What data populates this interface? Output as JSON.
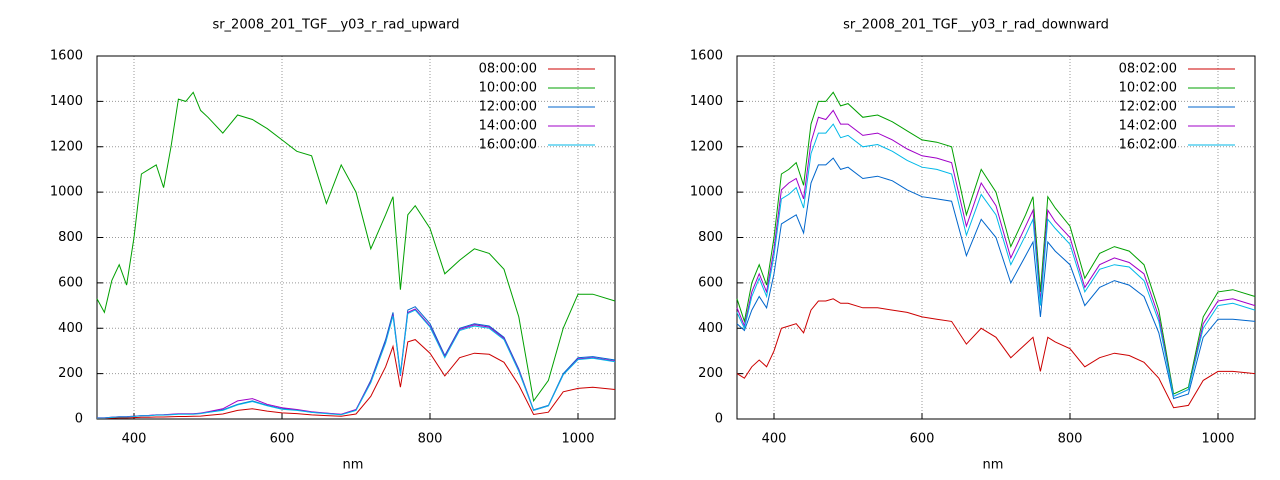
{
  "chart_data": [
    {
      "type": "line",
      "title": "sr_2008_201_TGF__y03_r_rad_upward",
      "x_label": "nm",
      "x": [
        350,
        360,
        370,
        380,
        390,
        400,
        410,
        420,
        430,
        440,
        450,
        460,
        470,
        480,
        490,
        500,
        520,
        540,
        560,
        580,
        600,
        620,
        640,
        660,
        680,
        700,
        720,
        740,
        750,
        760,
        770,
        780,
        800,
        820,
        840,
        860,
        880,
        900,
        920,
        940,
        960,
        980,
        1000,
        1020,
        1050
      ],
      "series": [
        {
          "name": "08:00:00",
          "color": "#cc0000",
          "values": [
            2,
            2,
            4,
            5,
            5,
            6,
            8,
            8,
            9,
            9,
            10,
            11,
            11,
            12,
            13,
            16,
            22,
            38,
            45,
            35,
            27,
            24,
            18,
            15,
            12,
            22,
            100,
            230,
            320,
            140,
            340,
            350,
            290,
            190,
            270,
            290,
            285,
            250,
            150,
            20,
            30,
            120,
            135,
            140,
            130
          ]
        },
        {
          "name": "10:00:00",
          "color": "#00a000",
          "values": [
            530,
            470,
            610,
            680,
            590,
            800,
            1080,
            1100,
            1120,
            1020,
            1200,
            1410,
            1400,
            1440,
            1360,
            1330,
            1260,
            1340,
            1320,
            1280,
            1230,
            1180,
            1160,
            950,
            1120,
            1000,
            750,
            900,
            980,
            570,
            900,
            940,
            840,
            640,
            700,
            750,
            730,
            660,
            450,
            80,
            170,
            400,
            550,
            550,
            520
          ]
        },
        {
          "name": "12:00:00",
          "color": "#0066cc",
          "values": [
            5,
            5,
            8,
            10,
            10,
            12,
            15,
            15,
            18,
            18,
            20,
            22,
            22,
            22,
            25,
            30,
            40,
            65,
            80,
            60,
            45,
            40,
            30,
            25,
            20,
            40,
            170,
            350,
            470,
            200,
            480,
            495,
            420,
            280,
            400,
            420,
            410,
            360,
            220,
            40,
            60,
            200,
            270,
            275,
            260
          ]
        },
        {
          "name": "14:00:00",
          "color": "#a000c8",
          "values": [
            5,
            5,
            8,
            10,
            10,
            12,
            15,
            16,
            18,
            19,
            21,
            23,
            23,
            23,
            26,
            32,
            45,
            80,
            90,
            65,
            50,
            42,
            32,
            26,
            21,
            42,
            165,
            340,
            460,
            190,
            470,
            485,
            410,
            275,
            395,
            415,
            405,
            355,
            215,
            38,
            58,
            195,
            265,
            270,
            255
          ]
        },
        {
          "name": "16:00:00",
          "color": "#00b8e8",
          "values": [
            4,
            4,
            7,
            9,
            9,
            11,
            14,
            14,
            17,
            17,
            19,
            21,
            21,
            21,
            24,
            29,
            38,
            62,
            77,
            58,
            43,
            38,
            29,
            24,
            19,
            38,
            160,
            335,
            455,
            195,
            465,
            480,
            405,
            270,
            390,
            410,
            400,
            350,
            210,
            38,
            58,
            195,
            262,
            268,
            252
          ]
        }
      ],
      "xlim": [
        350,
        1050
      ],
      "ylim": [
        0,
        1600
      ],
      "xticks": [
        400,
        600,
        800,
        1000
      ],
      "yticks": [
        0,
        200,
        400,
        600,
        800,
        1000,
        1200,
        1400,
        1600
      ],
      "grid": true,
      "legend": "top-right"
    },
    {
      "type": "line",
      "title": "sr_2008_201_TGF__y03_r_rad_downward",
      "x_label": "nm",
      "x": [
        350,
        360,
        370,
        380,
        390,
        400,
        410,
        420,
        430,
        440,
        450,
        460,
        470,
        480,
        490,
        500,
        520,
        540,
        560,
        580,
        600,
        620,
        640,
        660,
        680,
        700,
        720,
        740,
        750,
        760,
        770,
        780,
        800,
        820,
        840,
        860,
        880,
        900,
        920,
        940,
        960,
        980,
        1000,
        1020,
        1050
      ],
      "series": [
        {
          "name": "08:02:00",
          "color": "#cc0000",
          "values": [
            200,
            180,
            230,
            260,
            230,
            300,
            400,
            410,
            420,
            380,
            480,
            520,
            520,
            530,
            510,
            510,
            490,
            490,
            480,
            470,
            450,
            440,
            430,
            330,
            400,
            360,
            270,
            330,
            360,
            210,
            360,
            340,
            310,
            230,
            270,
            290,
            280,
            250,
            180,
            50,
            60,
            170,
            210,
            210,
            200
          ]
        },
        {
          "name": "10:02:00",
          "color": "#00a000",
          "values": [
            530,
            430,
            600,
            680,
            590,
            800,
            1080,
            1100,
            1130,
            1030,
            1300,
            1400,
            1400,
            1440,
            1380,
            1390,
            1330,
            1340,
            1310,
            1270,
            1230,
            1220,
            1200,
            900,
            1100,
            1000,
            760,
            900,
            980,
            560,
            980,
            930,
            850,
            620,
            730,
            760,
            740,
            680,
            480,
            110,
            140,
            450,
            560,
            570,
            540
          ]
        },
        {
          "name": "12:02:00",
          "color": "#0066cc",
          "values": [
            420,
            390,
            480,
            540,
            490,
            640,
            860,
            880,
            900,
            820,
            1040,
            1120,
            1120,
            1150,
            1100,
            1110,
            1060,
            1070,
            1050,
            1010,
            980,
            970,
            960,
            720,
            880,
            800,
            600,
            720,
            780,
            450,
            780,
            740,
            680,
            500,
            580,
            610,
            590,
            540,
            380,
            90,
            110,
            360,
            440,
            440,
            430
          ]
        },
        {
          "name": "14:02:00",
          "color": "#a000c8",
          "values": [
            490,
            410,
            560,
            640,
            560,
            750,
            1010,
            1040,
            1060,
            970,
            1220,
            1330,
            1320,
            1360,
            1300,
            1300,
            1250,
            1260,
            1230,
            1190,
            1160,
            1150,
            1130,
            850,
            1040,
            940,
            710,
            850,
            920,
            520,
            920,
            870,
            800,
            580,
            680,
            710,
            690,
            640,
            450,
            100,
            130,
            420,
            520,
            530,
            500
          ]
        },
        {
          "name": "16:02:00",
          "color": "#00b8e8",
          "values": [
            470,
            400,
            540,
            620,
            540,
            720,
            970,
            990,
            1020,
            930,
            1170,
            1260,
            1260,
            1300,
            1240,
            1250,
            1200,
            1210,
            1180,
            1140,
            1110,
            1100,
            1080,
            810,
            990,
            900,
            680,
            810,
            880,
            500,
            880,
            840,
            770,
            560,
            660,
            680,
            670,
            610,
            430,
            100,
            130,
            400,
            500,
            510,
            480
          ]
        }
      ],
      "xlim": [
        350,
        1050
      ],
      "ylim": [
        0,
        1600
      ],
      "xticks": [
        400,
        600,
        800,
        1000
      ],
      "yticks": [
        0,
        200,
        400,
        600,
        800,
        1000,
        1200,
        1400,
        1600
      ],
      "grid": true,
      "legend": "top-right"
    }
  ]
}
